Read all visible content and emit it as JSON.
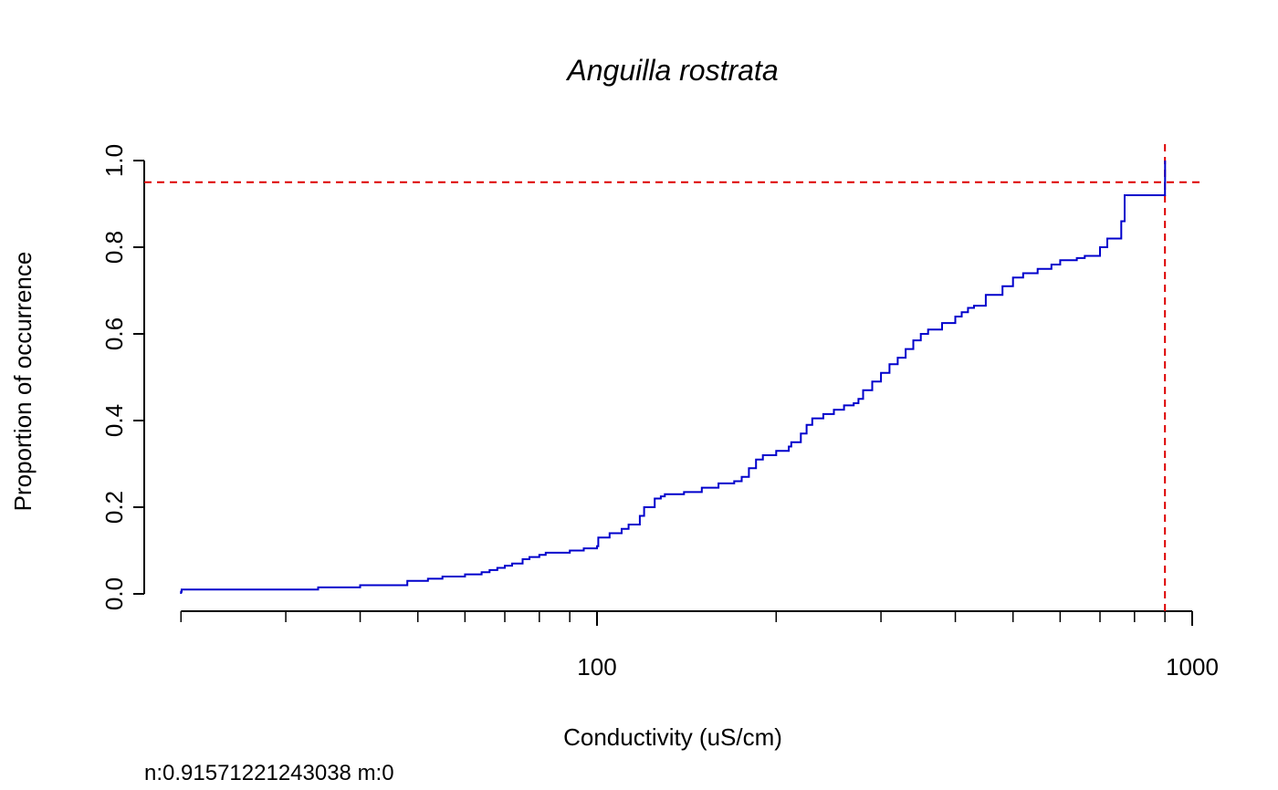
{
  "chart_data": {
    "type": "line",
    "subtype": "cumulative-step",
    "title": "Anguilla rostrata",
    "xlabel": "Conductivity (uS/cm)",
    "ylabel": "Proportion of occurrence",
    "x_scale": "log",
    "xlim": [
      20,
      1000
    ],
    "ylim": [
      0,
      1.0
    ],
    "x_major_ticks": [
      {
        "value": 100,
        "label": "100"
      },
      {
        "value": 1000,
        "label": "1000"
      }
    ],
    "x_minor_ticks": [
      20,
      30,
      40,
      50,
      60,
      70,
      80,
      90,
      200,
      300,
      400,
      500,
      600,
      700,
      800,
      900
    ],
    "y_ticks": [
      {
        "value": 0.0,
        "label": "0.0"
      },
      {
        "value": 0.2,
        "label": "0.2"
      },
      {
        "value": 0.4,
        "label": "0.4"
      },
      {
        "value": 0.6,
        "label": "0.6"
      },
      {
        "value": 0.8,
        "label": "0.8"
      },
      {
        "value": 1.0,
        "label": "1.0"
      }
    ],
    "grid": false,
    "series": [
      {
        "color": "#0000cc",
        "x": [
          20,
          20.05,
          34,
          40,
          48,
          52,
          55,
          60,
          64,
          66,
          68,
          70,
          72,
          75,
          77,
          80,
          82,
          90,
          95,
          100,
          100.5,
          105,
          110,
          113,
          118,
          120,
          125,
          128,
          130,
          140,
          150,
          160,
          170,
          175,
          180,
          185,
          190,
          200,
          210,
          212,
          220,
          225,
          230,
          240,
          250,
          260,
          270,
          275,
          280,
          290,
          300,
          310,
          320,
          330,
          340,
          350,
          360,
          380,
          400,
          410,
          420,
          430,
          450,
          480,
          500,
          520,
          550,
          580,
          600,
          640,
          660,
          700,
          720,
          760,
          770,
          900,
          900.5
        ],
        "y": [
          0.005,
          0.01,
          0.015,
          0.02,
          0.03,
          0.035,
          0.04,
          0.045,
          0.05,
          0.055,
          0.06,
          0.065,
          0.07,
          0.08,
          0.085,
          0.09,
          0.095,
          0.1,
          0.105,
          0.11,
          0.13,
          0.14,
          0.15,
          0.16,
          0.18,
          0.2,
          0.22,
          0.225,
          0.23,
          0.235,
          0.245,
          0.255,
          0.26,
          0.27,
          0.29,
          0.31,
          0.32,
          0.33,
          0.34,
          0.35,
          0.37,
          0.39,
          0.405,
          0.415,
          0.425,
          0.435,
          0.44,
          0.45,
          0.47,
          0.49,
          0.51,
          0.53,
          0.545,
          0.565,
          0.585,
          0.6,
          0.61,
          0.625,
          0.64,
          0.65,
          0.66,
          0.665,
          0.69,
          0.71,
          0.73,
          0.74,
          0.75,
          0.76,
          0.77,
          0.775,
          0.78,
          0.8,
          0.82,
          0.86,
          0.92,
          0.95,
          1.0
        ]
      }
    ],
    "reference_lines": [
      {
        "orientation": "horizontal",
        "value": 0.95,
        "color": "#dd0000",
        "style": "dashed"
      },
      {
        "orientation": "vertical",
        "value": 900,
        "color": "#dd0000",
        "style": "dashed"
      }
    ],
    "footer_text": "n:0.91571221243038 m:0"
  }
}
